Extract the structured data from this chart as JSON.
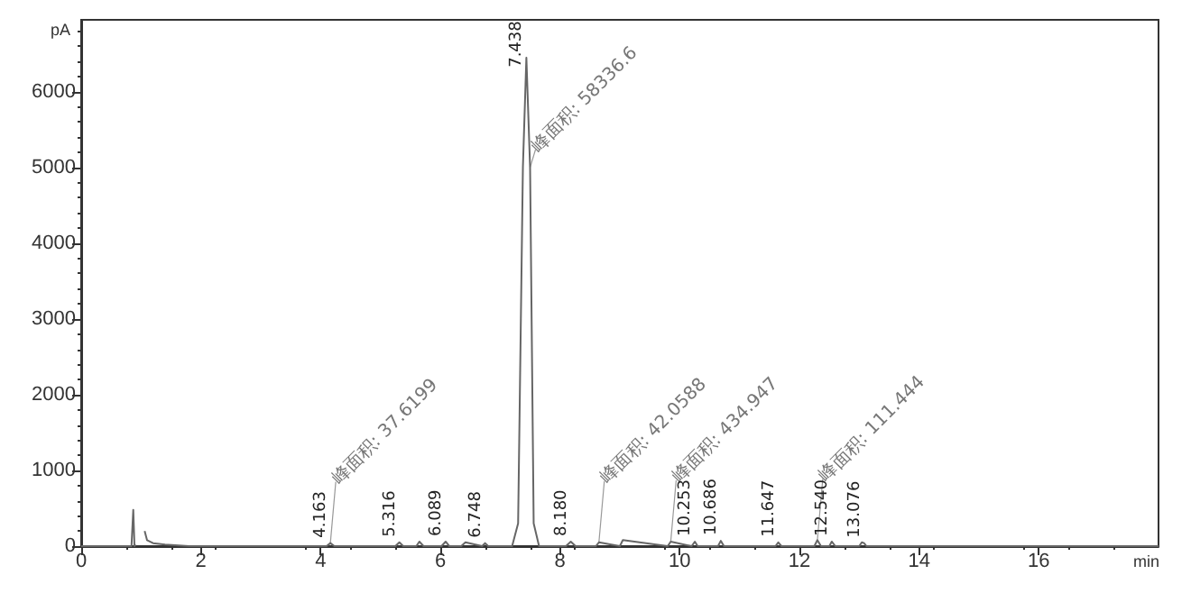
{
  "chart_data": {
    "type": "line",
    "xlabel": "min",
    "ylabel": "pA",
    "x": [
      0,
      0.84,
      0.87,
      0.89,
      0.91,
      0.94,
      0.96,
      1.0,
      1.03,
      1.06,
      1.1,
      1.2,
      1.4,
      1.8,
      3,
      4.1,
      4.163,
      4.23,
      5.25,
      5.316,
      5.38,
      5.6,
      5.65,
      5.72,
      6.02,
      6.089,
      6.15,
      6.35,
      6.42,
      6.7,
      6.748,
      6.8,
      7.2,
      7.3,
      7.38,
      7.438,
      7.5,
      7.56,
      7.65,
      8.1,
      8.18,
      8.26,
      8.6,
      8.65,
      9.0,
      9.05,
      9.8,
      9.85,
      10.2,
      10.253,
      10.3,
      10.64,
      10.686,
      10.74,
      11.6,
      11.647,
      11.7,
      12.25,
      12.3,
      12.36,
      12.5,
      12.54,
      12.6,
      13.0,
      13.042,
      13.08,
      13.12,
      15,
      18
    ],
    "values": [
      0,
      0,
      480,
      0,
      20,
      null,
      null,
      null,
      null,
      200,
      80,
      40,
      20,
      0,
      0,
      0,
      40,
      0,
      0,
      50,
      0,
      0,
      60,
      0,
      0,
      60,
      0,
      0,
      50,
      0,
      40,
      0,
      0,
      300,
      5000,
      6450,
      5000,
      300,
      0,
      0,
      60,
      0,
      0,
      50,
      0,
      80,
      0,
      60,
      0,
      60,
      0,
      0,
      70,
      0,
      0,
      50,
      0,
      0,
      80,
      0,
      0,
      60,
      0,
      0,
      50,
      40,
      0,
      0,
      0
    ],
    "color": "#666666",
    "xlim": [
      0,
      18
    ],
    "xticks": [
      0,
      2,
      4,
      6,
      8,
      10,
      12,
      14,
      16
    ],
    "ylim": [
      0,
      6950
    ],
    "yticks": [
      0,
      1000,
      2000,
      3000,
      4000,
      5000,
      6000
    ],
    "grid": false,
    "marker": "none",
    "line_style": "solid",
    "annotations": [
      {
        "text": "4.163",
        "x": 4.163,
        "y": 40
      },
      {
        "text": "峰面积: 37.6199",
        "x": 4.163,
        "y": 40
      },
      {
        "text": "5.316",
        "x": 5.316,
        "y": 50
      },
      {
        "text": "6.089",
        "x": 6.089,
        "y": 60
      },
      {
        "text": "6.748",
        "x": 6.748,
        "y": 40
      },
      {
        "text": "7.438",
        "x": 7.438,
        "y": 6250
      },
      {
        "text": "峰面积: 58336.6",
        "x": 7.5,
        "y": 5000
      },
      {
        "text": "8.180",
        "x": 8.18,
        "y": 60
      },
      {
        "text": "峰面积: 42.0588",
        "x": 8.65,
        "y": 50
      },
      {
        "text": "峰面积: 434.947",
        "x": 9.85,
        "y": 60
      },
      {
        "text": "10.253",
        "x": 10.253,
        "y": 60
      },
      {
        "text": "10.686",
        "x": 10.686,
        "y": 70
      },
      {
        "text": "11.647",
        "x": 11.647,
        "y": 50
      },
      {
        "text": "峰面积: 111.444",
        "x": 12.3,
        "y": 80
      },
      {
        "text": "12.540",
        "x": 12.54,
        "y": 60
      },
      {
        "text": "13.076",
        "x": 13.08,
        "y": 40
      }
    ]
  }
}
